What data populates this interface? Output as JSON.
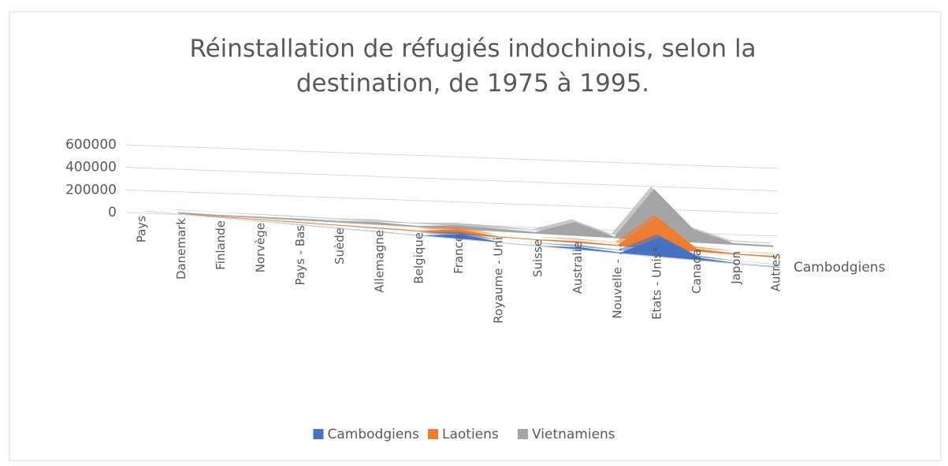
{
  "chart_data": {
    "type": "area3d",
    "title": "Réinstallation de réfugiés indochinois, selon la destination, de 1975 à 1995.",
    "categories": [
      "Pays",
      "Danemark",
      "Finlande",
      "Norvège",
      "Pays - Bas",
      "Suède",
      "Allemagne",
      "Belgique",
      "France",
      "Royaume - Uni",
      "Suisse",
      "Australie",
      "Nouvelle - ...",
      "Etats - Unis*",
      "Canada",
      "Japon",
      "Autres"
    ],
    "series": [
      {
        "name": "Cambodgiens",
        "color": "#4472c4",
        "values": [
          null,
          31,
          37,
          128,
          465,
          19,
          874,
          745,
          34364,
          273,
          1638,
          16308,
          4421,
          150240,
          16818,
          1061,
          2817
        ]
      },
      {
        "name": "Laotiens",
        "color": "#ed7d31",
        "values": [
          null,
          12,
          6,
          2,
          33,
          28,
          1706,
          989,
          34236,
          346,
          593,
          10239,
          1286,
          248147,
          17274,
          1273,
          6130
        ]
      },
      {
        "name": "Vietnamiens",
        "color": "#a5a5a5",
        "values": [
          null,
          4682,
          1859,
          6064,
          7565,
          6007,
          16848,
          2564,
          27071,
          19355,
          7304,
          110996,
          4921,
          424590,
          103053,
          8231,
          7476
        ]
      }
    ],
    "ylim": [
      0,
      600000
    ],
    "yticks": [
      0,
      200000,
      400000,
      600000
    ],
    "grid": true,
    "legend": "bottom"
  }
}
